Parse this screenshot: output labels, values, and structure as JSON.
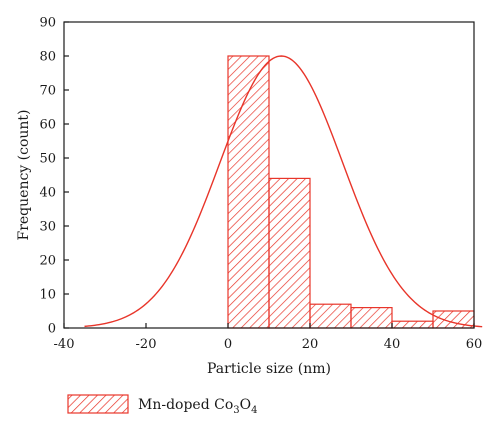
{
  "chart_data": {
    "type": "bar",
    "kind": "histogram with fitted normal curve",
    "xlabel": "Particle size (nm)",
    "ylabel": "Frequency (count)",
    "xlim": [
      -40,
      60
    ],
    "ylim": [
      0,
      90
    ],
    "x_ticks": [
      -40,
      -20,
      0,
      20,
      40,
      60
    ],
    "y_ticks": [
      0,
      10,
      20,
      30,
      40,
      50,
      60,
      70,
      80,
      90
    ],
    "bins": [
      {
        "start": 0,
        "end": 10,
        "value": 80
      },
      {
        "start": 10,
        "end": 20,
        "value": 44
      },
      {
        "start": 20,
        "end": 30,
        "value": 7
      },
      {
        "start": 30,
        "end": 40,
        "value": 6
      },
      {
        "start": 40,
        "end": 50,
        "value": 2
      },
      {
        "start": 50,
        "end": 60,
        "value": 5
      }
    ],
    "fit_curve": {
      "type": "gaussian",
      "center": 13,
      "amplitude": 80,
      "sigma": 15,
      "x_range": [
        -35,
        62
      ]
    },
    "legend": {
      "label": "Mn-doped ",
      "co_main": "Co",
      "co_sub": "3",
      "o_main": "O",
      "o_sub": "4",
      "placement": "bottom-left"
    },
    "grid": false,
    "colors": {
      "series": "#e8352a",
      "axis": "#1a1a1a",
      "background": "#ffffff"
    }
  }
}
